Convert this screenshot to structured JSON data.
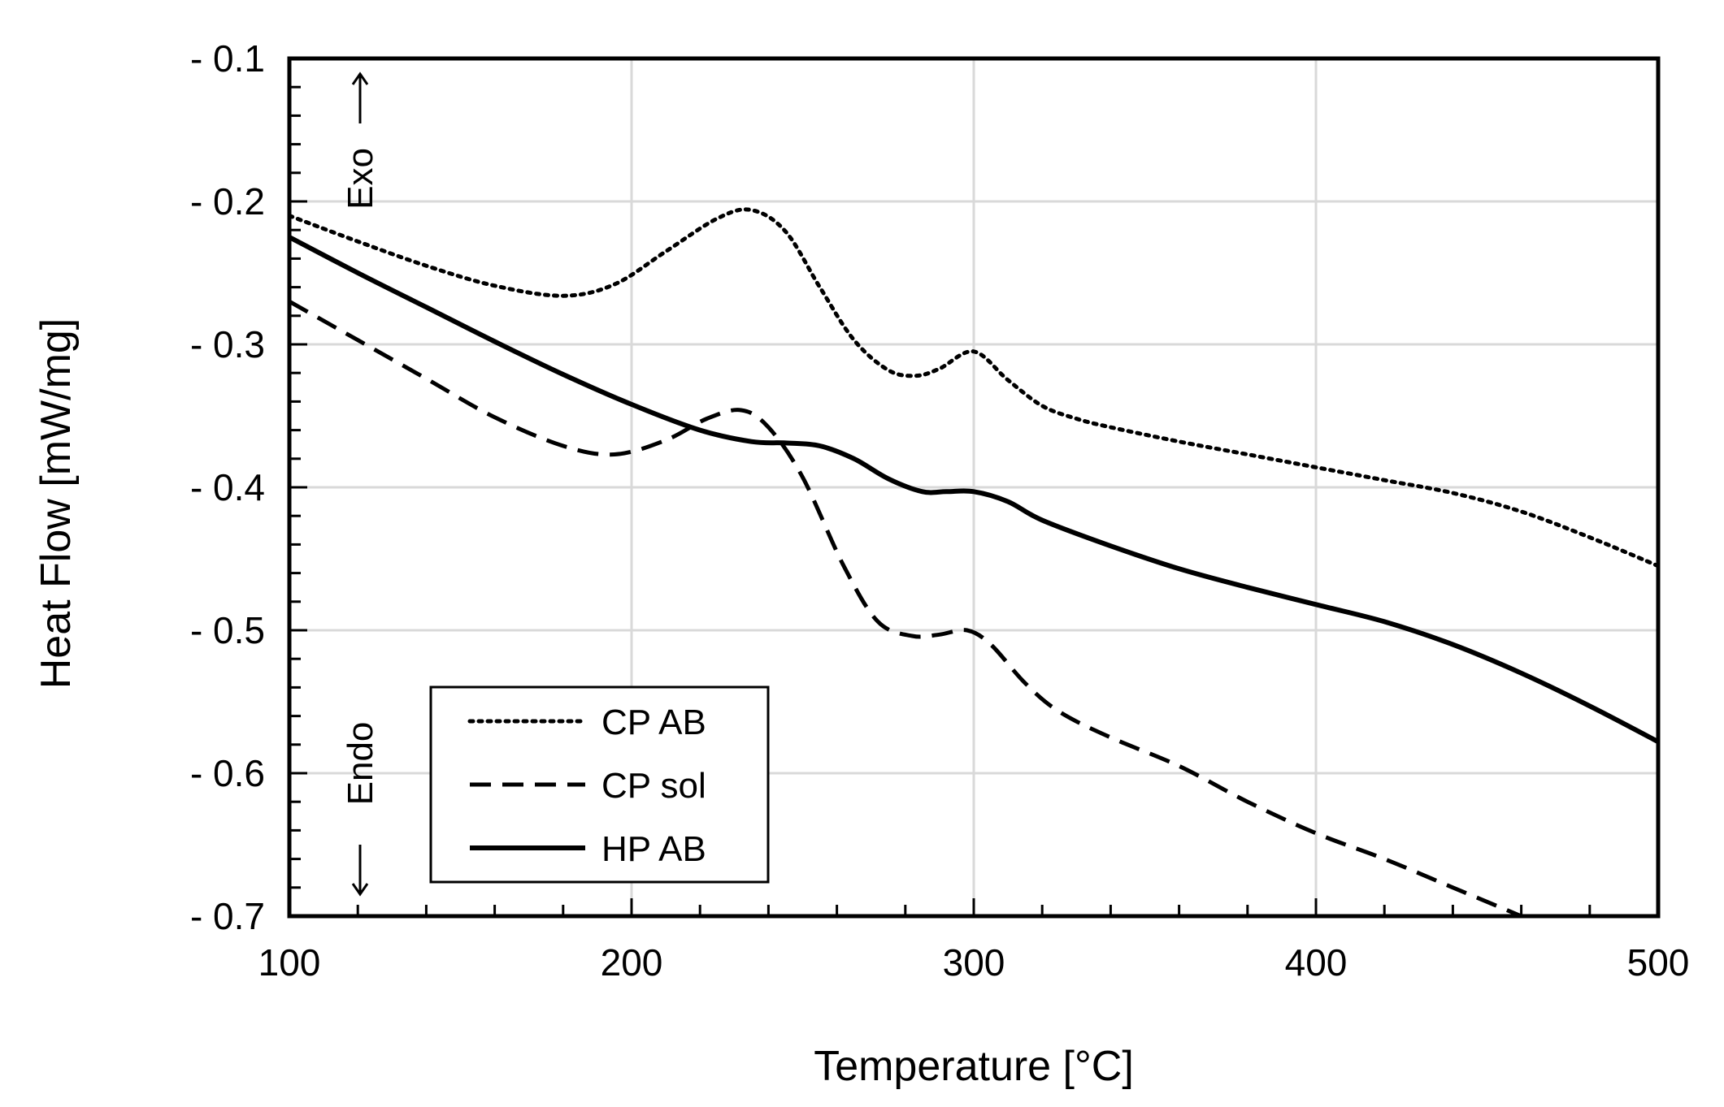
{
  "chart_data": {
    "type": "line",
    "title": "",
    "xlabel": "Temperature [°C]",
    "ylabel": "Heat Flow [mW/mg]",
    "xlim": [
      100,
      500
    ],
    "ylim": [
      -0.7,
      -0.1
    ],
    "x_ticks": [
      100,
      200,
      300,
      400,
      500
    ],
    "x_tick_labels": [
      "100",
      "200",
      "300",
      "400",
      "500"
    ],
    "y_ticks": [
      -0.1,
      -0.2,
      -0.3,
      -0.4,
      -0.5,
      -0.6,
      -0.7
    ],
    "y_tick_labels": [
      "- 0.1",
      "- 0.2",
      "- 0.3",
      "- 0.4",
      "- 0.5",
      "- 0.6",
      "- 0.7"
    ],
    "x_minor_step": 20,
    "y_minor_step": 0.02,
    "grid": true,
    "legend_position": "bottom-left",
    "annotations": {
      "exo": "Exo",
      "endo": "Endo"
    },
    "series": [
      {
        "name": "CP AB",
        "style": "dotted",
        "color": "#000000",
        "x": [
          100,
          120,
          140,
          160,
          180,
          195,
          210,
          225,
          235,
          245,
          255,
          265,
          275,
          283,
          290,
          300,
          310,
          320,
          330,
          340,
          360,
          380,
          400,
          420,
          440,
          460,
          480,
          500
        ],
        "y": [
          -0.21,
          -0.228,
          -0.245,
          -0.259,
          -0.266,
          -0.258,
          -0.235,
          -0.212,
          -0.206,
          -0.221,
          -0.26,
          -0.297,
          -0.318,
          -0.322,
          -0.317,
          -0.305,
          -0.325,
          -0.343,
          -0.352,
          -0.358,
          -0.368,
          -0.377,
          -0.386,
          -0.395,
          -0.404,
          -0.417,
          -0.435,
          -0.455
        ]
      },
      {
        "name": "CP sol",
        "style": "dashed",
        "color": "#000000",
        "x": [
          100,
          120,
          140,
          160,
          180,
          195,
          210,
          222,
          232,
          240,
          250,
          262,
          272,
          282,
          290,
          298,
          305,
          315,
          325,
          340,
          360,
          380,
          400,
          420,
          440,
          460
        ],
        "y": [
          -0.27,
          -0.297,
          -0.324,
          -0.351,
          -0.371,
          -0.377,
          -0.367,
          -0.352,
          -0.346,
          -0.358,
          -0.393,
          -0.455,
          -0.494,
          -0.504,
          -0.503,
          -0.5,
          -0.51,
          -0.537,
          -0.557,
          -0.575,
          -0.595,
          -0.62,
          -0.642,
          -0.66,
          -0.68,
          -0.7
        ]
      },
      {
        "name": "HP AB",
        "style": "solid",
        "color": "#000000",
        "x": [
          100,
          120,
          140,
          160,
          180,
          200,
          220,
          235,
          245,
          255,
          265,
          275,
          285,
          292,
          300,
          310,
          320,
          340,
          360,
          380,
          400,
          420,
          440,
          460,
          480,
          500
        ],
        "y": [
          -0.225,
          -0.25,
          -0.274,
          -0.298,
          -0.321,
          -0.342,
          -0.36,
          -0.368,
          -0.369,
          -0.371,
          -0.38,
          -0.394,
          -0.403,
          -0.403,
          -0.403,
          -0.41,
          -0.423,
          -0.441,
          -0.457,
          -0.47,
          -0.482,
          -0.494,
          -0.51,
          -0.53,
          -0.553,
          -0.578
        ]
      }
    ]
  }
}
